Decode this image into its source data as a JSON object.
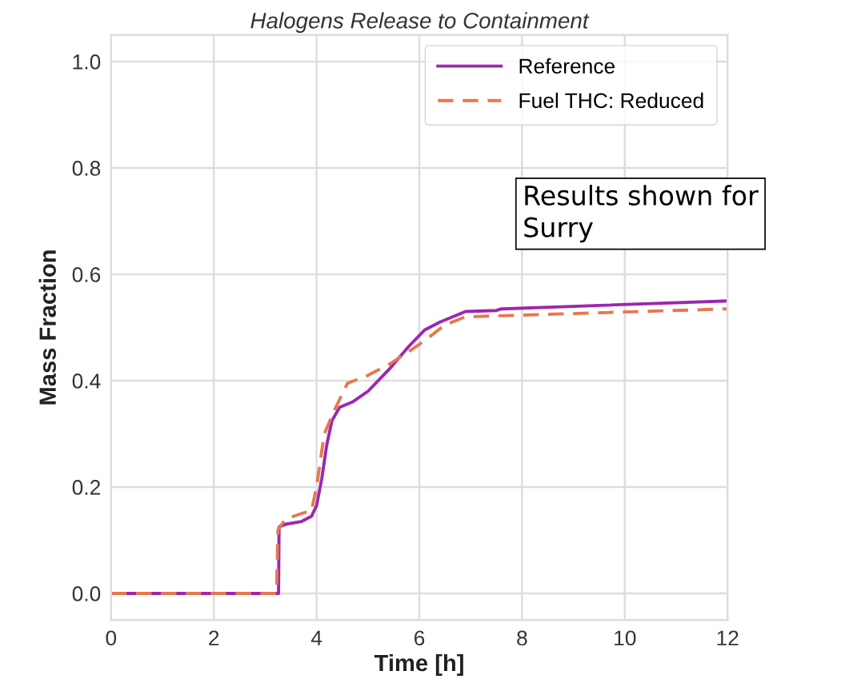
{
  "chart_data": {
    "type": "line",
    "title": "Halogens Release to Containment",
    "xlabel": "Time [h]",
    "ylabel": "Mass Fraction",
    "xlim": [
      0,
      12
    ],
    "ylim": [
      -0.05,
      1.05
    ],
    "xticks": [
      0,
      2,
      4,
      6,
      8,
      10,
      12
    ],
    "yticks": [
      {
        "value": 0,
        "label": "0.0"
      },
      0.2,
      0.4,
      0.6,
      0.8,
      {
        "value": 1,
        "label": "1.0"
      }
    ],
    "grid": true,
    "legend": "top right",
    "annotations": [
      "Results shown for\nSurry"
    ],
    "series": [
      {
        "name": "Reference",
        "color": "#9b27b0",
        "line_style": "solid",
        "x": [
          0,
          3.26,
          3.27,
          3.4,
          3.7,
          3.9,
          4.0,
          4.1,
          4.2,
          4.3,
          4.45,
          4.7,
          5.0,
          5.4,
          5.8,
          6.1,
          6.4,
          6.9,
          7.5,
          7.6,
          12
        ],
        "values": [
          0,
          0,
          0.125,
          0.13,
          0.135,
          0.145,
          0.165,
          0.215,
          0.28,
          0.325,
          0.35,
          0.36,
          0.38,
          0.42,
          0.465,
          0.495,
          0.51,
          0.53,
          0.532,
          0.535,
          0.55
        ]
      },
      {
        "name": "Fuel THC: Reduced",
        "color": "#e8774f",
        "line_style": "dashed",
        "x": [
          0,
          3.22,
          3.25,
          3.4,
          3.7,
          3.9,
          4.0,
          4.15,
          4.35,
          4.6,
          5.0,
          5.4,
          5.8,
          6.1,
          6.5,
          6.9,
          12
        ],
        "values": [
          0,
          0,
          0.12,
          0.14,
          0.15,
          0.155,
          0.2,
          0.3,
          0.345,
          0.395,
          0.41,
          0.43,
          0.455,
          0.475,
          0.505,
          0.52,
          0.535
        ]
      }
    ]
  }
}
